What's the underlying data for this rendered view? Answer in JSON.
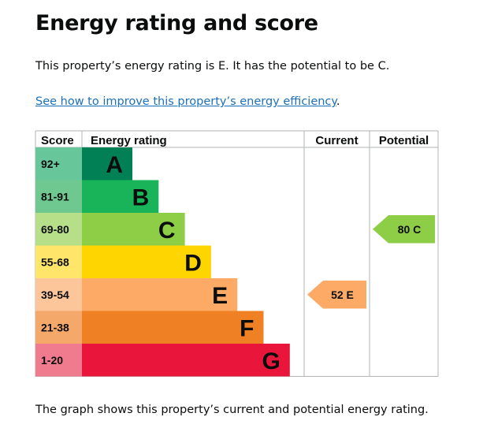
{
  "page": {
    "title": "Energy rating and score",
    "intro": "This property’s energy rating is E. It has the potential to be C.",
    "link_text": "See how to improve this property’s energy efficiency",
    "link_suffix": ".",
    "caption": "The graph shows this property’s current and potential energy rating."
  },
  "chart_data": {
    "type": "bar",
    "headers": {
      "score": "Score",
      "rating": "Energy rating",
      "current": "Current",
      "potential": "Potential"
    },
    "bands": [
      {
        "score": "92+",
        "letter": "A",
        "color": "#008054",
        "score_bg": "#67c79a"
      },
      {
        "score": "81-91",
        "letter": "B",
        "color": "#19b459",
        "score_bg": "#6ec88f"
      },
      {
        "score": "69-80",
        "letter": "C",
        "color": "#8dce46",
        "score_bg": "#b7df8a"
      },
      {
        "score": "55-68",
        "letter": "D",
        "color": "#ffd500",
        "score_bg": "#ffe56a"
      },
      {
        "score": "39-54",
        "letter": "E",
        "color": "#fcaa65",
        "score_bg": "#fcc69a"
      },
      {
        "score": "21-38",
        "letter": "F",
        "color": "#ef8023",
        "score_bg": "#f4a86a"
      },
      {
        "score": "1-20",
        "letter": "G",
        "color": "#e9153b",
        "score_bg": "#f07a8e"
      }
    ],
    "current": {
      "value": 52,
      "rating": "E",
      "label": "52 E",
      "color": "#fcaa65"
    },
    "potential": {
      "value": 80,
      "rating": "C",
      "label": "80 C",
      "color": "#8dce46"
    }
  }
}
